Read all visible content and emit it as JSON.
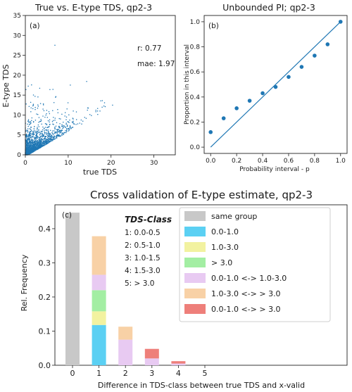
{
  "chart_data": [
    {
      "type": "scatter",
      "title": "True vs. E-type TDS, qp2-3",
      "panel_label": "(a)",
      "xlabel": "true TDS",
      "ylabel": "E-type TDS",
      "xlim": [
        0,
        35
      ],
      "ylim": [
        0,
        35
      ],
      "x_ticks": [
        "0",
        "10",
        "20",
        "30"
      ],
      "y_ticks": [
        "0",
        "5",
        "10",
        "15",
        "20",
        "25",
        "30",
        "35"
      ],
      "stats": [
        "r: 0.77",
        "mae: 1.97"
      ],
      "point_color": "#1f77b4",
      "note": "dense cloud of ~1500 small points concentrated at low TDS values"
    },
    {
      "type": "scatter",
      "title": "Unbounded PI; qp2-3",
      "panel_label": "(b)",
      "xlabel": "Probability interval - p",
      "ylabel": "Proportion in this interval",
      "xlim": [
        -0.05,
        1.05
      ],
      "ylim": [
        -0.05,
        1.05
      ],
      "x_ticks": [
        "0.0",
        "0.2",
        "0.4",
        "0.6",
        "0.8",
        "1.0"
      ],
      "y_ticks": [
        "0.0",
        "0.2",
        "0.4",
        "0.6",
        "0.8",
        "1.0"
      ],
      "x": [
        0.0,
        0.1,
        0.2,
        0.3,
        0.4,
        0.5,
        0.6,
        0.7,
        0.8,
        0.9,
        1.0
      ],
      "y": [
        0.12,
        0.23,
        0.31,
        0.37,
        0.43,
        0.48,
        0.56,
        0.64,
        0.73,
        0.82,
        1.0
      ],
      "reference_line": [
        [
          0,
          0
        ],
        [
          1,
          1
        ]
      ],
      "color": "#1f77b4"
    },
    {
      "type": "bar",
      "stacked": true,
      "title": "Cross validation of E-type estimate, qp2-3",
      "panel_label": "(c)",
      "xlabel": "Difference in TDS-class between true TDS and x-valid",
      "ylabel": "Rel. Frequency",
      "categories": [
        "0",
        "1",
        "2",
        "3",
        "4",
        "5"
      ],
      "ylim": [
        0,
        0.47
      ],
      "y_ticks": [
        "0.0",
        "0.1",
        "0.2",
        "0.3",
        "0.4"
      ],
      "class_table": {
        "heading": "TDS-Class",
        "rows": [
          "1: 0.0-0.5",
          "2: 0.5-1.0",
          "3: 1.0-1.5",
          "4: 1.5-3.0",
          "5: > 3.0"
        ]
      },
      "series": [
        {
          "name": "same group",
          "color": "#c8c8c8",
          "values": [
            0.447,
            0,
            0,
            0,
            0,
            0
          ]
        },
        {
          "name": "0.0-1.0",
          "color": "#5bd0f3",
          "values": [
            0,
            0.118,
            0,
            0,
            0,
            0
          ]
        },
        {
          "name": "1.0-3.0",
          "color": "#f2f2a0",
          "values": [
            0,
            0.04,
            0,
            0,
            0,
            0
          ]
        },
        {
          "name": "> 3.0",
          "color": "#a3eea3",
          "values": [
            0,
            0.062,
            0,
            0,
            0,
            0
          ]
        },
        {
          "name": "0.0-1.0 <-> 1.0-3.0",
          "color": "#e8caf2",
          "values": [
            0,
            0.045,
            0.075,
            0.02,
            0.005,
            0
          ]
        },
        {
          "name": "1.0-3.0 <-> > 3.0",
          "color": "#f8d1a6",
          "values": [
            0,
            0.113,
            0.038,
            0,
            0,
            0
          ]
        },
        {
          "name": "0.0-1.0 <-> > 3.0",
          "color": "#ee7f7a",
          "values": [
            0,
            0,
            0,
            0.028,
            0.007,
            0
          ]
        }
      ]
    }
  ]
}
